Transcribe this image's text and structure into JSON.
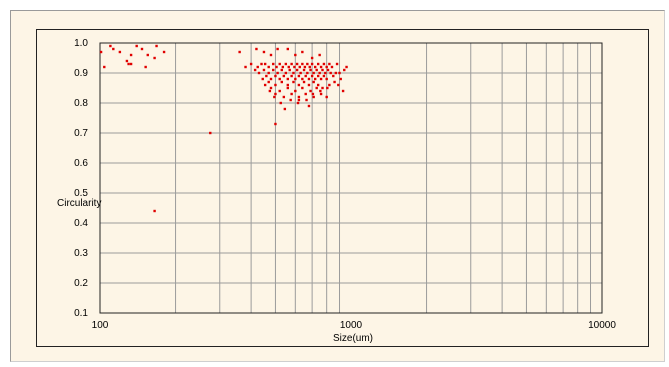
{
  "chart_data": {
    "type": "scatter",
    "title": "",
    "xlabel": "Size(um)",
    "ylabel": "Circularity",
    "x_scale": "log",
    "xlim": [
      100,
      10000
    ],
    "ylim": [
      0.1,
      1.0
    ],
    "x_tick_labels": [
      "100",
      "1000",
      "10000"
    ],
    "y_tick_labels": [
      "0.1",
      "0.2",
      "0.3",
      "0.4",
      "0.5",
      "0.6",
      "0.7",
      "0.8",
      "0.9",
      "1.0"
    ],
    "grid": true,
    "legend": "none",
    "marker_color": "#e00000",
    "points": [
      [
        101,
        0.97
      ],
      [
        104,
        0.92
      ],
      [
        110,
        0.99
      ],
      [
        113,
        0.98
      ],
      [
        120,
        0.97
      ],
      [
        128,
        0.94
      ],
      [
        130,
        0.93
      ],
      [
        133,
        0.93
      ],
      [
        133,
        0.96
      ],
      [
        140,
        0.99
      ],
      [
        147,
        0.98
      ],
      [
        152,
        0.92
      ],
      [
        155,
        0.96
      ],
      [
        165,
        0.95
      ],
      [
        168,
        0.99
      ],
      [
        180,
        0.97
      ],
      [
        165,
        0.44
      ],
      [
        275,
        0.7
      ],
      [
        360,
        0.97
      ],
      [
        380,
        0.92
      ],
      [
        400,
        0.93
      ],
      [
        420,
        0.98
      ],
      [
        450,
        0.97
      ],
      [
        480,
        0.96
      ],
      [
        510,
        0.98
      ],
      [
        560,
        0.98
      ],
      [
        600,
        0.96
      ],
      [
        640,
        0.97
      ],
      [
        700,
        0.95
      ],
      [
        750,
        0.96
      ],
      [
        500,
        0.73
      ],
      [
        545,
        0.78
      ],
      [
        680,
        0.79
      ],
      [
        620,
        0.81
      ],
      [
        800,
        0.82
      ],
      [
        930,
        0.84
      ],
      [
        960,
        0.92
      ],
      [
        880,
        0.93
      ],
      [
        440,
        0.93
      ],
      [
        455,
        0.93
      ],
      [
        470,
        0.92
      ],
      [
        490,
        0.93
      ],
      [
        505,
        0.92
      ],
      [
        520,
        0.93
      ],
      [
        535,
        0.92
      ],
      [
        550,
        0.93
      ],
      [
        565,
        0.92
      ],
      [
        580,
        0.93
      ],
      [
        595,
        0.92
      ],
      [
        610,
        0.93
      ],
      [
        625,
        0.92
      ],
      [
        640,
        0.93
      ],
      [
        655,
        0.92
      ],
      [
        670,
        0.93
      ],
      [
        685,
        0.92
      ],
      [
        700,
        0.93
      ],
      [
        720,
        0.92
      ],
      [
        740,
        0.93
      ],
      [
        760,
        0.92
      ],
      [
        780,
        0.93
      ],
      [
        800,
        0.92
      ],
      [
        820,
        0.93
      ],
      [
        840,
        0.92
      ],
      [
        450,
        0.91
      ],
      [
        470,
        0.9
      ],
      [
        490,
        0.91
      ],
      [
        510,
        0.9
      ],
      [
        530,
        0.91
      ],
      [
        550,
        0.9
      ],
      [
        570,
        0.91
      ],
      [
        590,
        0.9
      ],
      [
        610,
        0.91
      ],
      [
        630,
        0.9
      ],
      [
        650,
        0.91
      ],
      [
        670,
        0.9
      ],
      [
        690,
        0.91
      ],
      [
        710,
        0.9
      ],
      [
        730,
        0.91
      ],
      [
        750,
        0.9
      ],
      [
        770,
        0.91
      ],
      [
        790,
        0.9
      ],
      [
        810,
        0.91
      ],
      [
        830,
        0.9
      ],
      [
        460,
        0.89
      ],
      [
        480,
        0.88
      ],
      [
        500,
        0.89
      ],
      [
        520,
        0.88
      ],
      [
        540,
        0.89
      ],
      [
        560,
        0.88
      ],
      [
        580,
        0.89
      ],
      [
        600,
        0.88
      ],
      [
        620,
        0.89
      ],
      [
        640,
        0.88
      ],
      [
        660,
        0.89
      ],
      [
        680,
        0.88
      ],
      [
        700,
        0.89
      ],
      [
        720,
        0.88
      ],
      [
        740,
        0.89
      ],
      [
        760,
        0.88
      ],
      [
        780,
        0.89
      ],
      [
        800,
        0.88
      ],
      [
        850,
        0.89
      ],
      [
        900,
        0.9
      ],
      [
        470,
        0.87
      ],
      [
        500,
        0.86
      ],
      [
        530,
        0.87
      ],
      [
        560,
        0.86
      ],
      [
        590,
        0.87
      ],
      [
        620,
        0.86
      ],
      [
        650,
        0.87
      ],
      [
        680,
        0.86
      ],
      [
        710,
        0.87
      ],
      [
        740,
        0.86
      ],
      [
        770,
        0.85
      ],
      [
        820,
        0.86
      ],
      [
        860,
        0.87
      ],
      [
        480,
        0.85
      ],
      [
        520,
        0.84
      ],
      [
        560,
        0.85
      ],
      [
        600,
        0.84
      ],
      [
        640,
        0.85
      ],
      [
        690,
        0.84
      ],
      [
        730,
        0.85
      ],
      [
        500,
        0.83
      ],
      [
        540,
        0.82
      ],
      [
        580,
        0.83
      ],
      [
        620,
        0.82
      ],
      [
        660,
        0.83
      ],
      [
        710,
        0.82
      ],
      [
        760,
        0.83
      ],
      [
        430,
        0.9
      ],
      [
        445,
        0.88
      ],
      [
        425,
        0.92
      ],
      [
        890,
        0.86
      ],
      [
        910,
        0.88
      ],
      [
        870,
        0.9
      ],
      [
        940,
        0.91
      ],
      [
        415,
        0.91
      ],
      [
        455,
        0.86
      ],
      [
        475,
        0.84
      ],
      [
        495,
        0.82
      ],
      [
        525,
        0.8
      ],
      [
        575,
        0.81
      ],
      [
        615,
        0.8
      ],
      [
        665,
        0.81
      ],
      [
        705,
        0.83
      ],
      [
        755,
        0.84
      ],
      [
        805,
        0.85
      ]
    ]
  }
}
